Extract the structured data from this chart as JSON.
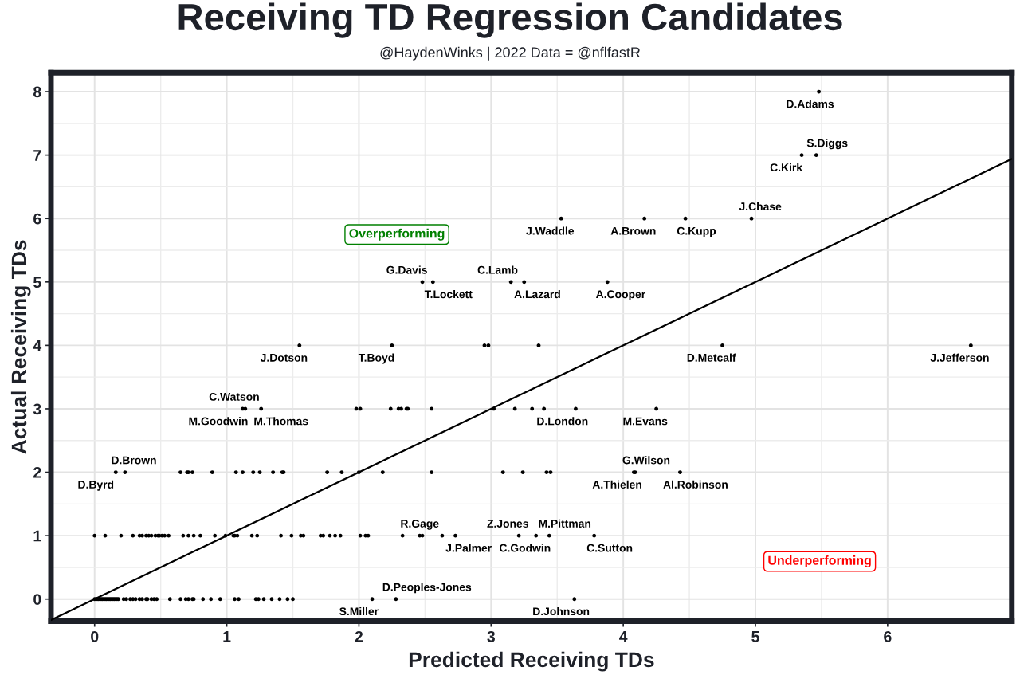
{
  "chart_data": {
    "type": "scatter",
    "title": "Receiving TD Regression Candidates",
    "subtitle": "@HaydenWinks | 2022 Data = @nflfastR",
    "xlabel": "Predicted Receiving TDs",
    "ylabel": "Actual Receiving TDs",
    "xlim": [
      -0.33,
      6.94
    ],
    "ylim": [
      -0.35,
      8.3
    ],
    "xticks": [
      0,
      1,
      2,
      3,
      4,
      5,
      6
    ],
    "yticks": [
      0,
      1,
      2,
      3,
      4,
      5,
      6,
      7,
      8
    ],
    "grid": true,
    "marker": "circle",
    "series": [
      {
        "color": "#000000",
        "x": [
          5.48,
          5.35,
          5.46,
          3.53,
          4.16,
          4.47,
          4.97,
          2.48,
          2.56,
          3.15,
          3.25,
          3.88,
          1.55,
          2.25,
          2.95,
          2.98,
          3.36,
          4.75,
          6.63,
          1.12,
          1.14,
          1.26,
          1.98,
          2.01,
          2.24,
          2.3,
          2.32,
          2.36,
          2.37,
          2.55,
          3.02,
          3.18,
          3.31,
          3.4,
          3.64,
          4.25,
          0.16,
          0.23,
          0.65,
          0.7,
          0.71,
          0.74,
          0.89,
          1.07,
          1.12,
          1.2,
          1.25,
          1.35,
          1.42,
          1.43,
          1.76,
          1.87,
          2.0,
          2.18,
          2.55,
          3.09,
          3.24,
          3.42,
          3.45,
          4.08,
          4.09,
          4.43,
          0.0,
          0.08,
          0.2,
          0.29,
          0.34,
          0.36,
          0.39,
          0.41,
          0.43,
          0.46,
          0.48,
          0.49,
          0.51,
          0.53,
          0.56,
          0.67,
          0.71,
          0.75,
          0.8,
          0.91,
          0.99,
          1.05,
          1.06,
          1.08,
          1.19,
          1.23,
          1.41,
          1.49,
          1.56,
          1.58,
          1.71,
          1.73,
          1.78,
          1.82,
          1.86,
          2.01,
          2.05,
          2.07,
          2.33,
          2.46,
          2.48,
          2.63,
          2.73,
          3.21,
          3.34,
          3.44,
          3.78,
          0.0,
          0.01,
          0.02,
          0.03,
          0.04,
          0.05,
          0.06,
          0.07,
          0.08,
          0.09,
          0.1,
          0.11,
          0.12,
          0.13,
          0.14,
          0.15,
          0.16,
          0.17,
          0.18,
          0.22,
          0.24,
          0.27,
          0.29,
          0.31,
          0.34,
          0.36,
          0.39,
          0.4,
          0.43,
          0.45,
          0.47,
          0.57,
          0.65,
          0.69,
          0.71,
          0.74,
          0.75,
          0.82,
          0.88,
          0.95,
          1.06,
          1.09,
          1.22,
          1.24,
          1.28,
          1.34,
          1.4,
          1.46,
          1.5,
          2.1,
          2.28,
          3.63
        ],
        "values": [
          8,
          7,
          7,
          6,
          6,
          6,
          6,
          5,
          5,
          5,
          5,
          5,
          4,
          4,
          4,
          4,
          4,
          4,
          4,
          3,
          3,
          3,
          3,
          3,
          3,
          3,
          3,
          3,
          3,
          3,
          3,
          3,
          3,
          3,
          3,
          3,
          2,
          2,
          2,
          2,
          2,
          2,
          2,
          2,
          2,
          2,
          2,
          2,
          2,
          2,
          2,
          2,
          2,
          2,
          2,
          2,
          2,
          2,
          2,
          2,
          2,
          2,
          1,
          1,
          1,
          1,
          1,
          1,
          1,
          1,
          1,
          1,
          1,
          1,
          1,
          1,
          1,
          1,
          1,
          1,
          1,
          1,
          1,
          1,
          1,
          1,
          1,
          1,
          1,
          1,
          1,
          1,
          1,
          1,
          1,
          1,
          1,
          1,
          1,
          1,
          1,
          1,
          1,
          1,
          1,
          1,
          1,
          1,
          1,
          0,
          0,
          0,
          0,
          0,
          0,
          0,
          0,
          0,
          0,
          0,
          0,
          0,
          0,
          0,
          0,
          0,
          0,
          0,
          0,
          0,
          0,
          0,
          0,
          0,
          0,
          0,
          0,
          0,
          0,
          0,
          0,
          0,
          0,
          0,
          0,
          0,
          0,
          0,
          0,
          0,
          0,
          0,
          0,
          0,
          0,
          0,
          0,
          0,
          0,
          0,
          0
        ]
      },
      {
        "type": "line",
        "color": "#000000",
        "x": [
          -0.33,
          6.94
        ],
        "values": [
          -0.33,
          6.94
        ],
        "marker": "none",
        "line_style": "solid"
      }
    ],
    "annotations": [
      "Overperforming",
      "Underperforming",
      {
        "text": "D.Adams",
        "x": 5.48,
        "y": 8
      },
      {
        "text": "S.Diggs",
        "x": 5.46,
        "y": 7
      },
      {
        "text": "C.Kirk",
        "x": 5.35,
        "y": 7
      },
      {
        "text": "J.Chase",
        "x": 4.97,
        "y": 6
      },
      {
        "text": "J.Waddle",
        "x": 3.53,
        "y": 6
      },
      {
        "text": "A.Brown",
        "x": 4.16,
        "y": 6
      },
      {
        "text": "C.Kupp",
        "x": 4.47,
        "y": 6
      },
      {
        "text": "G.Davis",
        "x": 2.48,
        "y": 5
      },
      {
        "text": "T.Lockett",
        "x": 2.56,
        "y": 5
      },
      {
        "text": "C.Lamb",
        "x": 3.15,
        "y": 5
      },
      {
        "text": "A.Lazard",
        "x": 3.25,
        "y": 5
      },
      {
        "text": "A.Cooper",
        "x": 3.88,
        "y": 5
      },
      {
        "text": "J.Dotson",
        "x": 1.55,
        "y": 4
      },
      {
        "text": "T.Boyd",
        "x": 2.25,
        "y": 4
      },
      {
        "text": "D.Metcalf",
        "x": 4.75,
        "y": 4
      },
      {
        "text": "J.Jefferson",
        "x": 6.63,
        "y": 4
      },
      {
        "text": "C.Watson",
        "x": 1.14,
        "y": 3
      },
      {
        "text": "M.Goodwin",
        "x": 1.12,
        "y": 3
      },
      {
        "text": "M.Thomas",
        "x": 1.26,
        "y": 3
      },
      {
        "text": "D.London",
        "x": 3.64,
        "y": 3
      },
      {
        "text": "M.Evans",
        "x": 4.25,
        "y": 3
      },
      {
        "text": "D.Brown",
        "x": 0.23,
        "y": 2
      },
      {
        "text": "D.Byrd",
        "x": 0.16,
        "y": 2
      },
      {
        "text": "G.Wilson",
        "x": 4.09,
        "y": 2
      },
      {
        "text": "A.Thielen",
        "x": 4.08,
        "y": 2
      },
      {
        "text": "Al.Robinson",
        "x": 4.43,
        "y": 2
      },
      {
        "text": "R.Gage",
        "x": 2.46,
        "y": 1
      },
      {
        "text": "J.Palmer",
        "x": 2.73,
        "y": 1
      },
      {
        "text": "Z.Jones",
        "x": 3.21,
        "y": 1
      },
      {
        "text": "C.Godwin",
        "x": 3.34,
        "y": 1
      },
      {
        "text": "M.Pittman",
        "x": 3.44,
        "y": 1
      },
      {
        "text": "C.Sutton",
        "x": 3.78,
        "y": 1
      },
      {
        "text": "D.Peoples-Jones",
        "x": 2.28,
        "y": 0
      },
      {
        "text": "S.Miller",
        "x": 2.1,
        "y": 0
      },
      {
        "text": "D.Johnson",
        "x": 3.63,
        "y": 0
      }
    ]
  }
}
